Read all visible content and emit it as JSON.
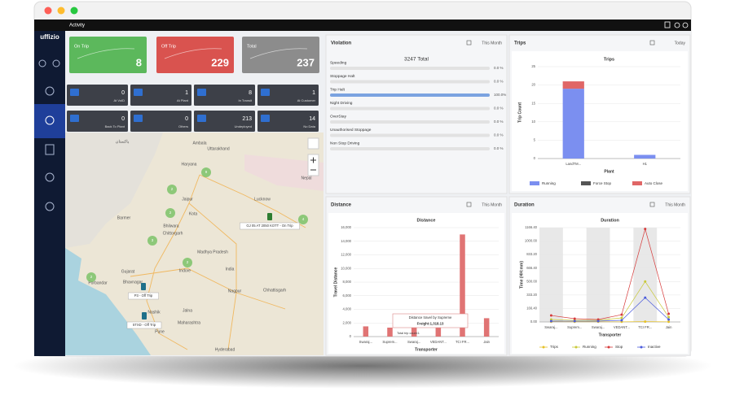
{
  "header": {
    "title": "Activity",
    "logo": "uffizio"
  },
  "status_tiles": [
    {
      "label": "On Trip",
      "value": 8,
      "color": "#5cb85c"
    },
    {
      "label": "Off Trip",
      "value": 229,
      "color": "#d9534f"
    },
    {
      "label": "Total",
      "value": 237,
      "color": "#8c8c8c"
    }
  ],
  "location_tiles": [
    {
      "label": "At VoID",
      "value": 0
    },
    {
      "label": "At Plant",
      "value": 1
    },
    {
      "label": "In Transit",
      "value": 8
    },
    {
      "label": "At Customer",
      "value": 1
    },
    {
      "label": "Back To Plant",
      "value": 0
    },
    {
      "label": "Others",
      "value": 0
    },
    {
      "label": "Undeployed",
      "value": 213
    },
    {
      "label": "No Data",
      "value": 14
    }
  ],
  "map": {
    "places": [
      "پاکستان",
      "Ambala",
      "Uttarakhand",
      "Haryana",
      "Nepal",
      "Jaipur",
      "Lucknow",
      "Kota",
      "Barmer",
      "Bhilwara",
      "Chittorgarh",
      "Madhya Pradesh",
      "Indore",
      "Gujarat",
      "India",
      "Porbandar",
      "Bhavnagar",
      "Nagpur",
      "Chhattisgarh",
      "Nashik",
      "Jalna",
      "Maharashtra",
      "Pune",
      "Hyderabad"
    ],
    "clusters": [
      9,
      2,
      2,
      3,
      2,
      2,
      4
    ],
    "vehicles": [
      "GJ 05 AT 2050 KOTT - On Trip",
      "P3 - Off Trip",
      "5TXD - Off Trip"
    ]
  },
  "violation": {
    "title": "Violation",
    "period": "This Month",
    "total": "3247 Total",
    "rows": [
      {
        "name": "Speeding",
        "value": 0,
        "value_label": "0.0 %"
      },
      {
        "name": "Stoppage Halt",
        "value": 0,
        "value_label": "0.0 %"
      },
      {
        "name": "Trip Halt",
        "value": 100,
        "value_label": "100.0%"
      },
      {
        "name": "Night Driving",
        "value": 0,
        "value_label": "0.0 %"
      },
      {
        "name": "OverStay",
        "value": 0,
        "value_label": "0.0 %"
      },
      {
        "name": "Unauthorised Stoppage",
        "value": 0,
        "value_label": "0.0 %"
      },
      {
        "name": "Non Stop Driving",
        "value": 0,
        "value_label": "0.0 %"
      }
    ]
  },
  "trips": {
    "title": "Trips",
    "period": "Today",
    "chart": {
      "type": "bar",
      "title": "Trips",
      "x_label": "Plant",
      "y_label": "Trip Count",
      "categories": [
        "LandTM...",
        "H1"
      ],
      "series": [
        {
          "name": "Running",
          "color": "#7b8ff0",
          "values": [
            19,
            1
          ]
        },
        {
          "name": "Force Stop",
          "color": "#555555",
          "values": [
            0,
            0
          ]
        },
        {
          "name": "Auto Close",
          "color": "#e06666",
          "values": [
            2,
            0
          ]
        }
      ],
      "ylim": [
        0,
        25
      ],
      "yticks": [
        0,
        5,
        10,
        15,
        20,
        25
      ]
    }
  },
  "distance": {
    "title": "Distance",
    "period": "This Month",
    "chart": {
      "type": "bar",
      "title": "Distance",
      "x_label": "Transporter",
      "y_label": "Travel Distance",
      "categories": [
        "Swaraj...",
        "Suprem...",
        "Swaraj...",
        "VEDANT...",
        "TCI FR...",
        "Jain"
      ],
      "values": [
        1500,
        1318.13,
        1500,
        1500,
        15000,
        2700
      ],
      "color": "#e07474",
      "ylim": [
        0,
        16000
      ],
      "yticks": [
        0,
        {
          "value": 2000,
          "label": "2,000"
        },
        {
          "value": 4000,
          "label": "4,000"
        },
        {
          "value": 6000,
          "label": "6,000"
        },
        {
          "value": 8000,
          "label": "8,000"
        },
        {
          "value": 10000,
          "label": "10,000"
        },
        {
          "value": 12000,
          "label": "12,000"
        },
        {
          "value": 14000,
          "label": "14,000"
        },
        {
          "value": 16000,
          "label": "16,000"
        }
      ],
      "tooltip": {
        "title": "Distance travel by Supreme",
        "freight": "Freight:1,318.13",
        "trip_count": "Total trip count:1"
      }
    }
  },
  "duration": {
    "title": "Duration",
    "period": "This Month",
    "chart": {
      "type": "line",
      "title": "Duration",
      "x_label": "Transporter",
      "y_label": "Time (HH:mm)",
      "categories": [
        "Swaraj...",
        "Suprem...",
        "Swaraj...",
        "VEDANT...",
        "TCI FR...",
        "Jain"
      ],
      "series": [
        {
          "name": "Trips",
          "color": "#e6c229",
          "values": [
            3,
            2,
            2,
            2,
            4,
            2
          ]
        },
        {
          "name": "Running",
          "color": "#c9c93a",
          "values": [
            30,
            20,
            20,
            50,
            500,
            60
          ]
        },
        {
          "name": "Stop",
          "color": "#d63a3a",
          "values": [
            80,
            40,
            30,
            90,
            1150,
            100
          ]
        },
        {
          "name": "Inactive",
          "color": "#4b5bdc",
          "values": [
            10,
            10,
            10,
            20,
            300,
            30
          ]
        }
      ],
      "ylim": [
        0,
        1166.4
      ],
      "yticks": [
        {
          "value": 0,
          "label": "0.00"
        },
        {
          "value": 166.4,
          "label": "166.40"
        },
        {
          "value": 333.2,
          "label": "333.20"
        },
        {
          "value": 500,
          "label": "500.00"
        },
        {
          "value": 666.4,
          "label": "666.40"
        },
        {
          "value": 833.2,
          "label": "833.20"
        },
        {
          "value": 1000,
          "label": "1000.00"
        },
        {
          "value": 1166.4,
          "label": "1166.40"
        }
      ]
    }
  }
}
